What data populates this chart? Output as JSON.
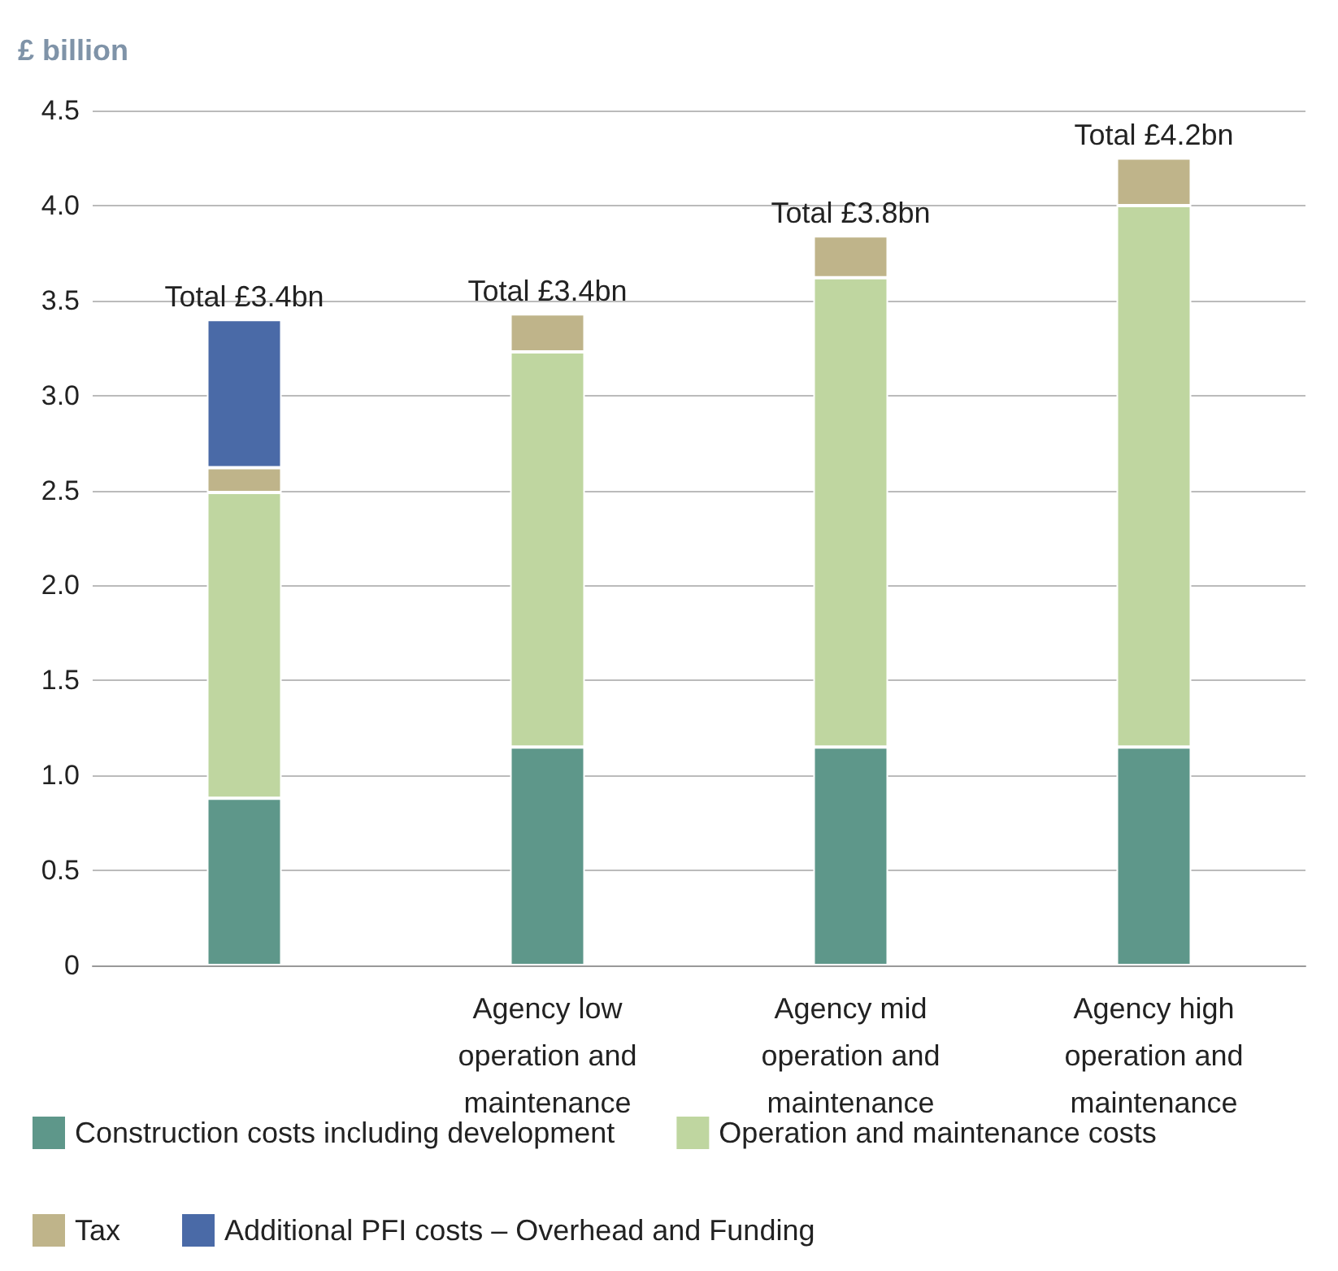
{
  "chart_data": {
    "type": "bar",
    "stacked": true,
    "ylabel": "£ billion",
    "categories": [
      null,
      "Agency low\noperation and\nmaintenance",
      "Agency mid\noperation and\nmaintenance",
      "Agency high\noperation and\nmaintenance"
    ],
    "series": [
      {
        "name": "Construction costs including development",
        "color": "#5e978a",
        "values": [
          0.88,
          1.15,
          1.15,
          1.15
        ]
      },
      {
        "name": "Operation and maintenance costs",
        "color": "#bfd6a0",
        "values": [
          1.61,
          2.08,
          2.47,
          2.85
        ]
      },
      {
        "name": "Tax",
        "color": "#bfb48a",
        "values": [
          0.13,
          0.2,
          0.22,
          0.25
        ]
      },
      {
        "name": "Additional PFI costs – Overhead and Funding",
        "color": "#4a6aa7",
        "values": [
          0.78,
          null,
          null,
          null
        ]
      }
    ],
    "totals": [
      "Total £3.4bn",
      "Total £3.4bn",
      "Total £3.8bn",
      "Total £4.2bn"
    ],
    "ylim": [
      0,
      4.5
    ],
    "yticks": [
      0,
      0.5,
      {
        "value": 1,
        "label": "1.0"
      },
      1.5,
      {
        "value": 2,
        "label": "2.0"
      },
      2.5,
      {
        "value": 3,
        "label": "3.0"
      },
      3.5,
      {
        "value": 4,
        "label": "4.0"
      },
      4.5
    ],
    "grid": "y",
    "legend": "bottom"
  }
}
